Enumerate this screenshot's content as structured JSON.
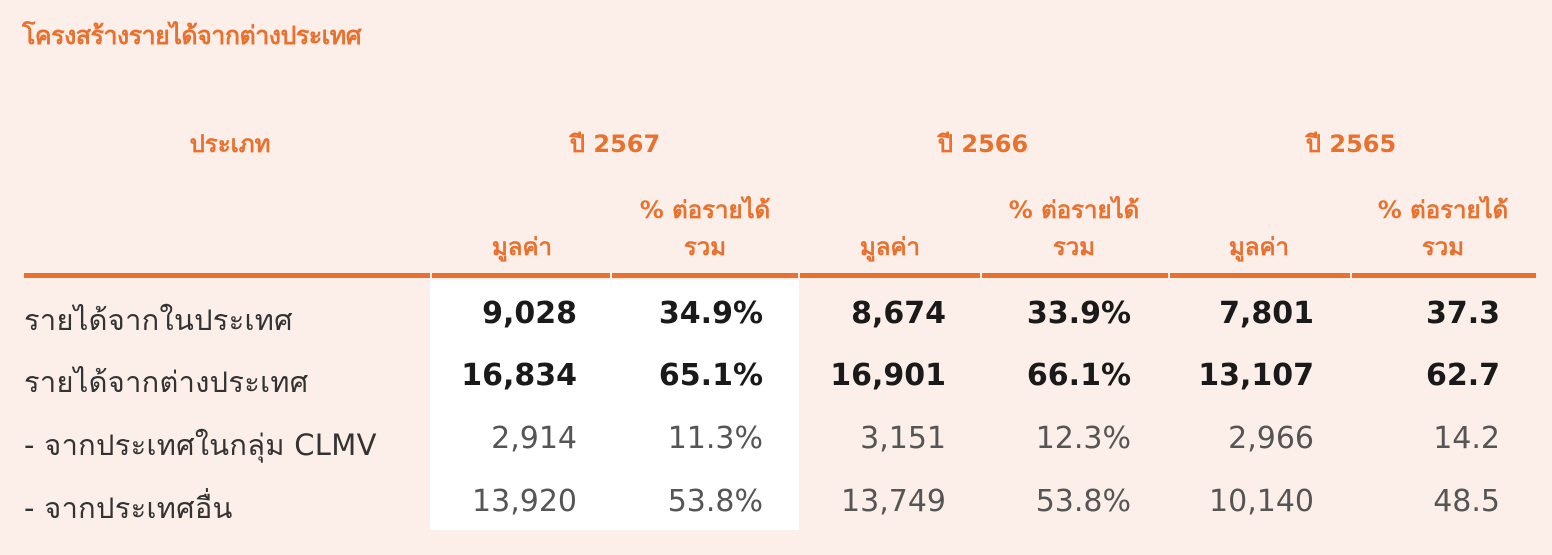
{
  "title": "โครงสร้างรายได้จากต่างประเทศ",
  "header": {
    "type_label": "ประเภท",
    "years": [
      "ปี 2567",
      "ปี 2566",
      "ปี 2565"
    ],
    "value_label": "มูลค่า",
    "pct_label_line1": "% ต่อรายได้",
    "pct_label_line2": "รวม"
  },
  "rows": [
    {
      "label": "รายได้จากในประเทศ",
      "cells": [
        "9,028",
        "34.9%",
        "8,674",
        "33.9%",
        "7,801",
        "37.3"
      ],
      "emphasis": "bold"
    },
    {
      "label": "รายได้จากต่างประเทศ",
      "cells": [
        "16,834",
        "65.1%",
        "16,901",
        "66.1%",
        "13,107",
        "62.7"
      ],
      "emphasis": "bold"
    },
    {
      "label": "- จากประเทศในกลุ่ม CLMV",
      "cells": [
        "2,914",
        "11.3%",
        "3,151",
        "12.3%",
        "2,966",
        "14.2"
      ],
      "emphasis": "light"
    },
    {
      "label": "- จากประเทศอื่น",
      "cells": [
        "13,920",
        "53.8%",
        "13,749",
        "53.8%",
        "10,140",
        "48.5"
      ],
      "emphasis": "light"
    }
  ],
  "colors": {
    "accent": "#e8712f",
    "background": "#fcefe9",
    "highlight": "#ffffff"
  }
}
